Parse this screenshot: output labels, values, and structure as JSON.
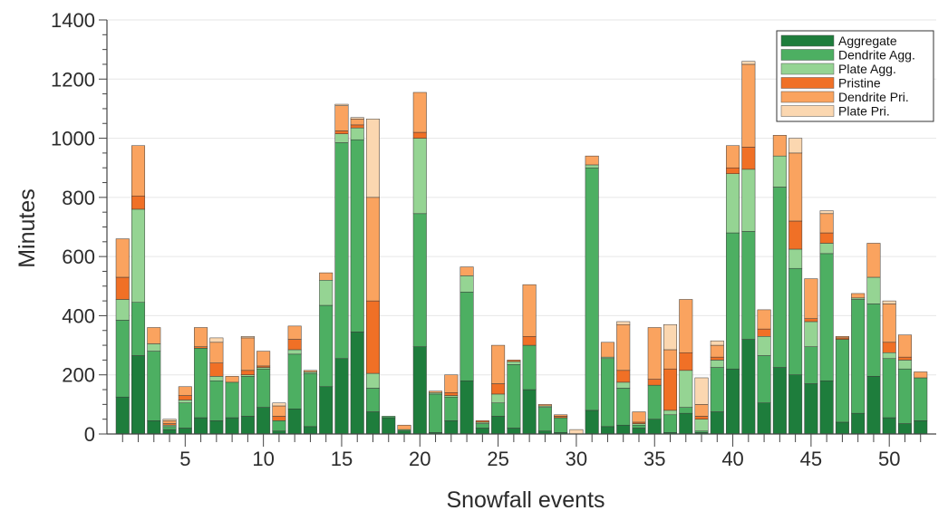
{
  "chart_data": {
    "type": "bar",
    "stacked": true,
    "xlabel": "Snowfall events",
    "ylabel": "Minutes",
    "ylim": [
      0,
      1400
    ],
    "xlim": [
      0,
      53
    ],
    "x_ticks": [
      5,
      10,
      15,
      20,
      25,
      30,
      35,
      40,
      45,
      50
    ],
    "y_ticks": [
      0,
      200,
      400,
      600,
      800,
      1000,
      1200,
      1400
    ],
    "grid": "horizontal",
    "legend_position": "top-right",
    "x": [
      1,
      2,
      3,
      4,
      5,
      6,
      7,
      8,
      9,
      10,
      11,
      12,
      13,
      14,
      15,
      16,
      17,
      18,
      19,
      20,
      21,
      22,
      23,
      24,
      25,
      26,
      27,
      28,
      29,
      30,
      31,
      32,
      33,
      34,
      35,
      36,
      37,
      38,
      39,
      40,
      41,
      42,
      43,
      44,
      45,
      46,
      47,
      48,
      49,
      50,
      51,
      52
    ],
    "series": [
      {
        "name": "Aggregate",
        "color": "#1e7d3c",
        "values": [
          125,
          265,
          45,
          15,
          20,
          55,
          45,
          55,
          60,
          90,
          10,
          85,
          25,
          160,
          255,
          345,
          75,
          55,
          10,
          295,
          5,
          45,
          180,
          20,
          60,
          20,
          150,
          10,
          5,
          0,
          80,
          25,
          30,
          20,
          50,
          5,
          70,
          5,
          75,
          220,
          320,
          105,
          225,
          200,
          170,
          180,
          40,
          70,
          195,
          55,
          35,
          45
        ]
      },
      {
        "name": "Dendrite Agg.",
        "color": "#4daf62",
        "values": [
          260,
          180,
          235,
          10,
          85,
          235,
          135,
          120,
          135,
          130,
          35,
          185,
          180,
          275,
          730,
          650,
          80,
          5,
          5,
          450,
          130,
          80,
          300,
          15,
          45,
          215,
          150,
          80,
          50,
          0,
          820,
          230,
          125,
          10,
          115,
          60,
          20,
          5,
          150,
          460,
          365,
          160,
          610,
          360,
          125,
          430,
          280,
          385,
          245,
          200,
          185,
          145
        ]
      },
      {
        "name": "Plate Agg.",
        "color": "#95d493",
        "values": [
          70,
          315,
          25,
          5,
          10,
          0,
          15,
          0,
          5,
          5,
          0,
          15,
          5,
          85,
          30,
          40,
          50,
          0,
          0,
          255,
          5,
          5,
          55,
          5,
          30,
          10,
          0,
          5,
          0,
          0,
          10,
          5,
          20,
          5,
          0,
          15,
          125,
          40,
          25,
          200,
          210,
          65,
          105,
          65,
          85,
          35,
          0,
          5,
          90,
          20,
          30,
          0
        ]
      },
      {
        "name": "Pristine",
        "color": "#f07026",
        "values": [
          75,
          45,
          0,
          5,
          15,
          5,
          45,
          0,
          15,
          5,
          15,
          35,
          0,
          0,
          10,
          10,
          245,
          0,
          0,
          20,
          0,
          10,
          0,
          5,
          35,
          5,
          30,
          0,
          5,
          0,
          0,
          0,
          40,
          5,
          20,
          140,
          60,
          10,
          10,
          20,
          75,
          25,
          0,
          95,
          10,
          35,
          5,
          0,
          0,
          35,
          10,
          0
        ]
      },
      {
        "name": "Dendrite Pri.",
        "color": "#faa35f",
        "values": [
          130,
          170,
          55,
          10,
          30,
          65,
          70,
          20,
          110,
          50,
          35,
          45,
          5,
          25,
          85,
          20,
          350,
          0,
          15,
          135,
          5,
          60,
          30,
          0,
          130,
          0,
          175,
          5,
          5,
          0,
          30,
          50,
          155,
          35,
          175,
          65,
          180,
          40,
          40,
          75,
          280,
          65,
          70,
          230,
          135,
          65,
          5,
          15,
          115,
          130,
          75,
          20
        ]
      },
      {
        "name": "Plate Pri.",
        "color": "#fbd7b0",
        "values": [
          0,
          0,
          0,
          5,
          0,
          0,
          15,
          0,
          5,
          0,
          10,
          0,
          0,
          0,
          5,
          5,
          265,
          0,
          0,
          0,
          0,
          0,
          0,
          0,
          0,
          0,
          0,
          0,
          0,
          15,
          0,
          0,
          10,
          0,
          0,
          85,
          0,
          90,
          15,
          0,
          10,
          0,
          0,
          50,
          0,
          10,
          0,
          0,
          0,
          10,
          0,
          0
        ]
      }
    ]
  },
  "legend": {
    "items": [
      {
        "label": "Aggregate",
        "color": "#1e7d3c"
      },
      {
        "label": "Dendrite Agg.",
        "color": "#4daf62"
      },
      {
        "label": "Plate Agg.",
        "color": "#95d493"
      },
      {
        "label": "Pristine",
        "color": "#f07026"
      },
      {
        "label": "Dendrite Pri.",
        "color": "#faa35f"
      },
      {
        "label": "Plate Pri.",
        "color": "#fbd7b0"
      }
    ]
  },
  "style": {
    "grid_color": "#e6e6e6",
    "axis_color": "#444444",
    "bar_edge": "#3a3a3a"
  }
}
